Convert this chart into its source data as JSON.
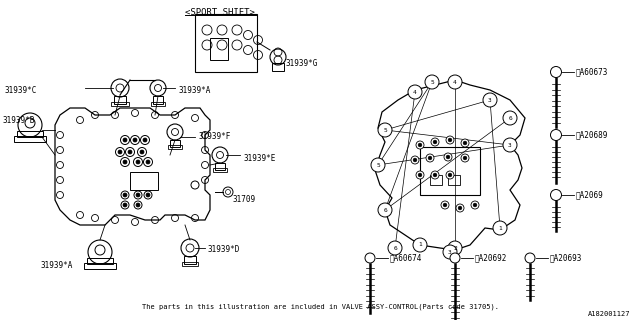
{
  "bg_color": "#ffffff",
  "line_color": "#000000",
  "fig_width": 6.4,
  "fig_height": 3.2,
  "dpi": 100,
  "bottom_text": "The parts in this illustration are included in VALVE ASSY-CONTROL(Parts code 31705).",
  "part_number_ref": "A182001127",
  "sport_shift_label": "<SPORT SHIFT>"
}
